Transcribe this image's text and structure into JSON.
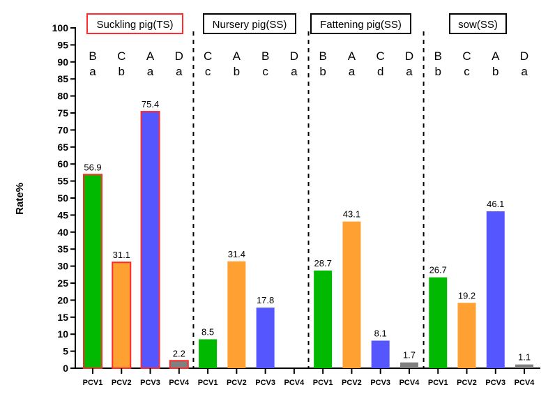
{
  "chart_data": {
    "type": "bar",
    "ylabel": "Rate%",
    "xlabel": "",
    "ylim": [
      0,
      100
    ],
    "ytick_step": 5,
    "grid": false,
    "colors": {
      "PCV1": "#00b900",
      "PCV2": "#ffa033",
      "PCV3": "#5656ff",
      "PCV4": "#808080",
      "highlight_border": "#ff2a2a"
    },
    "groups": [
      {
        "title": "Suckling pig(TS)",
        "highlight": true,
        "categories": [
          "PCV1",
          "PCV2",
          "PCV3",
          "PCV4"
        ],
        "values": [
          56.9,
          31.1,
          75.4,
          2.2
        ],
        "value_labels": [
          "56.9",
          "31.1",
          "75.4",
          "2.2"
        ],
        "rank_upper": [
          "B",
          "C",
          "A",
          "D"
        ],
        "rank_lower": [
          "a",
          "b",
          "a",
          "a"
        ]
      },
      {
        "title": "Nursery pig(SS)",
        "highlight": false,
        "categories": [
          "PCV1",
          "PCV2",
          "PCV3",
          "PCV4"
        ],
        "values": [
          8.5,
          31.4,
          17.8,
          0
        ],
        "value_labels": [
          "8.5",
          "31.4",
          "17.8",
          ""
        ],
        "rank_upper": [
          "C",
          "A",
          "B",
          "D"
        ],
        "rank_lower": [
          "c",
          "b",
          "c",
          "a"
        ]
      },
      {
        "title": "Fattening pig(SS)",
        "highlight": false,
        "categories": [
          "PCV1",
          "PCV2",
          "PCV3",
          "PCV4"
        ],
        "values": [
          28.7,
          43.1,
          8.1,
          1.7
        ],
        "value_labels": [
          "28.7",
          "43.1",
          "8.1",
          "1.7"
        ],
        "rank_upper": [
          "B",
          "A",
          "C",
          "D"
        ],
        "rank_lower": [
          "b",
          "a",
          "d",
          "a"
        ]
      },
      {
        "title": "sow(SS)",
        "highlight": false,
        "categories": [
          "PCV1",
          "PCV2",
          "PCV3",
          "PCV4"
        ],
        "values": [
          26.7,
          19.2,
          46.1,
          1.1
        ],
        "value_labels": [
          "26.7",
          "19.2",
          "46.1",
          "1.1"
        ],
        "rank_upper": [
          "B",
          "C",
          "A",
          "D"
        ],
        "rank_lower": [
          "b",
          "c",
          "b",
          "a"
        ]
      }
    ]
  }
}
